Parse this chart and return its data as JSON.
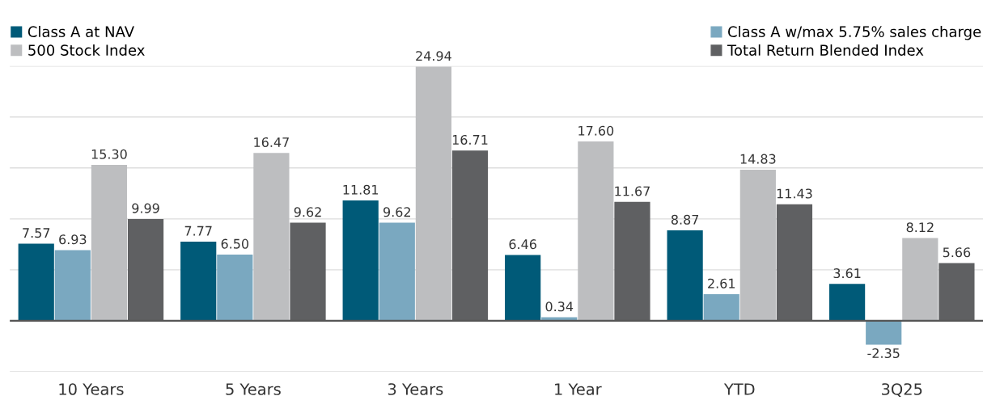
{
  "chart_data": {
    "type": "bar",
    "categories": [
      "10 Years",
      "5 Years",
      "3 Years",
      "1 Year",
      "YTD",
      "3Q25"
    ],
    "series": [
      {
        "name": "Class A at NAV",
        "color": "#005a78",
        "values": [
          7.57,
          7.77,
          11.81,
          6.46,
          8.87,
          3.61
        ],
        "value_labels": [
          "7.57",
          "7.77",
          "11.81",
          "6.46",
          "8.87",
          "3.61"
        ]
      },
      {
        "name": "Class A w/max 5.75% sales charge",
        "color": "#7aa8c0",
        "values": [
          6.93,
          6.5,
          9.62,
          0.34,
          2.61,
          -2.35
        ],
        "value_labels": [
          "6.93",
          "6.50",
          "9.62",
          "0.34",
          "2.61",
          "-2.35"
        ]
      },
      {
        "name": "500 Stock Index",
        "color": "#bdbec0",
        "values": [
          15.3,
          16.47,
          24.94,
          17.6,
          14.83,
          8.12
        ],
        "value_labels": [
          "15.30",
          "16.47",
          "24.94",
          "17.60",
          "14.83",
          "8.12"
        ]
      },
      {
        "name": "Total Return Blended Index",
        "color": "#5f6062",
        "values": [
          9.99,
          9.62,
          16.71,
          11.67,
          11.43,
          5.66
        ],
        "value_labels": [
          "9.99",
          "9.62",
          "16.71",
          "11.67",
          "11.43",
          "5.66"
        ]
      }
    ],
    "ylim": [
      -5,
      25
    ],
    "yticks": [
      {
        "value": -5,
        "label": null
      },
      {
        "value": 0,
        "label": null
      },
      {
        "value": 5,
        "label": null
      },
      {
        "value": 10,
        "label": null
      },
      {
        "value": 15,
        "label": null
      },
      {
        "value": 20,
        "label": null
      },
      {
        "value": 25,
        "label": null
      }
    ],
    "tick_labels": "x",
    "grid": "y",
    "legend": "top",
    "ref_lines": [
      {
        "axis": "y",
        "value": 0,
        "color": "#555555"
      }
    ]
  }
}
